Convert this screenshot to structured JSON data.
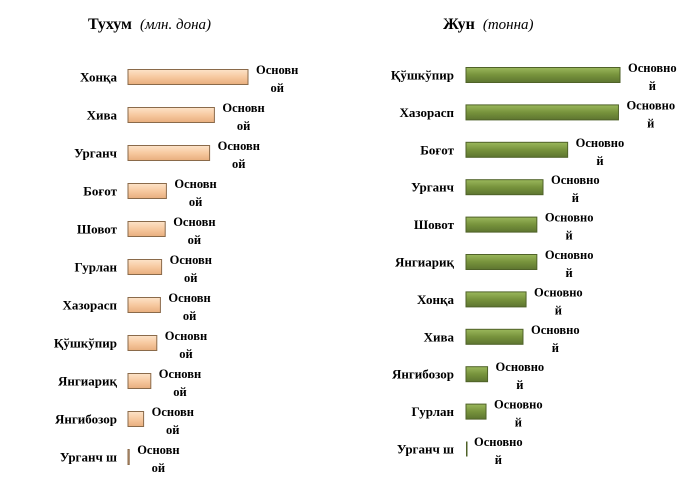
{
  "chart_data": [
    {
      "type": "bar",
      "orientation": "horizontal",
      "title": "Тухум",
      "title_unit": "(млн. дона)",
      "categories": [
        "Хонқа",
        "Хива",
        "Урганч",
        "Боғот",
        "Шовот",
        "Гурлан",
        "Хазорасп",
        "Қўшкўпир",
        "Янгиариқ",
        "Янгибозор",
        "Урганч ш"
      ],
      "values": [
        100,
        72,
        68,
        32,
        31,
        28,
        27,
        24,
        19,
        13,
        1
      ],
      "data_label": "Основной",
      "data_label_lines": [
        "Основн",
        "ой"
      ],
      "bar_color": "#f6c9a0",
      "bar_edge": "#8a6a4a",
      "xlim": [
        0,
        100
      ]
    },
    {
      "type": "bar",
      "orientation": "horizontal",
      "title": "Жун",
      "title_unit": "(тонна)",
      "categories": [
        "Қўшкўпир",
        "Хазорасп",
        "Боғот",
        "Урганч",
        "Шовот",
        "Янгиариқ",
        "Хонқа",
        "Хива",
        "Янгибозор",
        "Гурлан",
        "Урганч ш"
      ],
      "values": [
        100,
        99,
        66,
        50,
        46,
        46,
        39,
        37,
        14,
        13,
        0
      ],
      "data_label": "Основной",
      "data_label_lines": [
        "Основно",
        "й"
      ],
      "bar_color": "#77933c",
      "bar_edge": "#4f6228",
      "xlim": [
        0,
        100
      ]
    }
  ]
}
